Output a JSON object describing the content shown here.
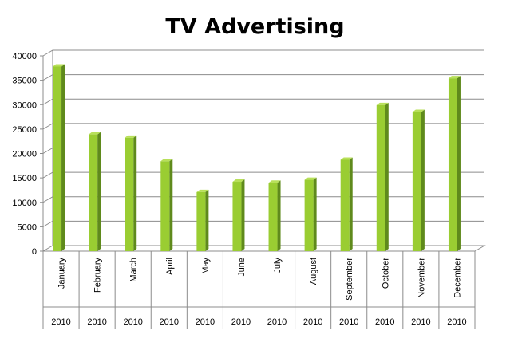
{
  "chart_data": {
    "type": "bar",
    "title": "TV Advertising",
    "xlabel": "",
    "ylabel": "",
    "categories": [
      "January",
      "February",
      "March",
      "April",
      "May",
      "June",
      "July",
      "August",
      "September",
      "October",
      "November",
      "December"
    ],
    "category_years": [
      "2010",
      "2010",
      "2010",
      "2010",
      "2010",
      "2010",
      "2010",
      "2010",
      "2010",
      "2010",
      "2010",
      "2010"
    ],
    "values": [
      37800,
      23900,
      23200,
      18400,
      12100,
      14200,
      14000,
      14600,
      18700,
      29900,
      28500,
      35400
    ],
    "ylim": [
      0,
      40000
    ],
    "yticks": [
      "0",
      "5000",
      "10000",
      "15000",
      "20000",
      "25000",
      "30000",
      "35000",
      "40000"
    ],
    "grid": true,
    "legend": "none",
    "colors": {
      "bar_front": "#9acd32",
      "bar_side": "#5f8a1c",
      "bar_top": "#b8e05a",
      "grid": "#8c8c8c",
      "wall": "#ffffff"
    }
  }
}
